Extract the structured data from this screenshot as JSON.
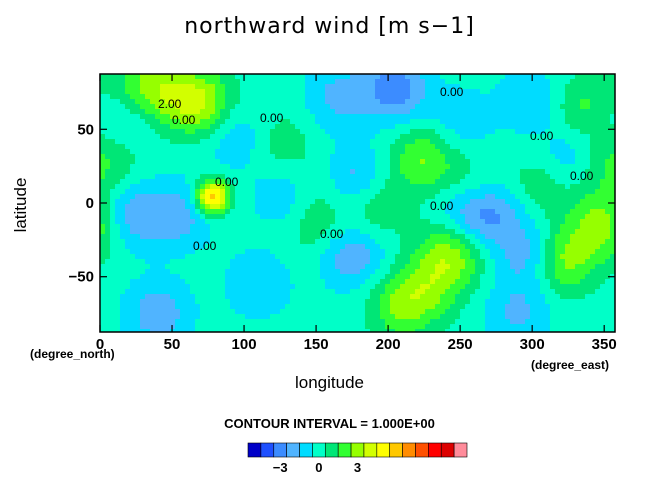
{
  "chart_data": {
    "type": "heatmap",
    "title": "northward wind [m s−1]",
    "xlabel": "longitude",
    "ylabel": "latitude",
    "x_unit_label": "(degree_east)",
    "y_unit_label": "(degree_north)",
    "xlim": [
      0,
      357.5
    ],
    "ylim": [
      -87.5,
      87.5
    ],
    "x_ticks": [
      0,
      50,
      100,
      150,
      200,
      250,
      300,
      350
    ],
    "y_ticks": [
      -50,
      0,
      50
    ],
    "y_tick_labels": [
      "−50",
      "0",
      "50"
    ],
    "contour_interval_text": "CONTOUR INTERVAL = 1.000E+00",
    "contour_labels": [
      "2.00",
      "0.00",
      "0.00",
      "0.00",
      "0.00",
      "0.00",
      "0.00",
      "0.00",
      "0.00",
      "0.00"
    ],
    "colorbar": {
      "tick_labels": [
        "−3",
        "0",
        "3"
      ],
      "tick_values": [
        -3,
        0,
        3
      ],
      "colors": [
        "#0000c8",
        "#1e50ff",
        "#3c8cff",
        "#50b4ff",
        "#00dcff",
        "#00ffc8",
        "#00e676",
        "#32ff32",
        "#96ff00",
        "#d2ff00",
        "#ffff00",
        "#ffc800",
        "#ff8c00",
        "#ff5000",
        "#ff0000",
        "#dc0000",
        "#ff8c9b"
      ],
      "levels_start": -5.5,
      "levels_step": 1
    },
    "features": [
      {
        "lon": 78,
        "lat": 4,
        "value": 6.5
      },
      {
        "lon": 70,
        "lat": 68,
        "value": 3.4
      },
      {
        "lon": 45,
        "lat": 75,
        "value": 2.2
      },
      {
        "lon": 25,
        "lat": 82,
        "value": 1.6
      },
      {
        "lon": 205,
        "lat": 78,
        "value": -3.2
      },
      {
        "lon": 165,
        "lat": 72,
        "value": -1.8
      },
      {
        "lon": 300,
        "lat": 70,
        "value": -1.5
      },
      {
        "lon": 22,
        "lat": -8,
        "value": -2.2
      },
      {
        "lon": 55,
        "lat": -8,
        "value": -2.0
      },
      {
        "lon": 8,
        "lat": 30,
        "value": 1.3
      },
      {
        "lon": 130,
        "lat": 5,
        "value": -1.6
      },
      {
        "lon": 155,
        "lat": 12,
        "value": 1.2
      },
      {
        "lon": 175,
        "lat": 15,
        "value": -2.6
      },
      {
        "lon": 175,
        "lat": -35,
        "value": -2.4
      },
      {
        "lon": 190,
        "lat": -2,
        "value": 1.8
      },
      {
        "lon": 225,
        "lat": 30,
        "value": 2.6
      },
      {
        "lon": 245,
        "lat": -32,
        "value": 3.2
      },
      {
        "lon": 255,
        "lat": -10,
        "value": -2.5
      },
      {
        "lon": 275,
        "lat": -5,
        "value": -2.1
      },
      {
        "lon": 260,
        "lat": 10,
        "value": 1.3
      },
      {
        "lon": 300,
        "lat": -35,
        "value": -2.6
      },
      {
        "lon": 320,
        "lat": -38,
        "value": 3.4
      },
      {
        "lon": 345,
        "lat": 25,
        "value": 1.6
      },
      {
        "lon": 350,
        "lat": -15,
        "value": 3.0
      },
      {
        "lon": 305,
        "lat": 10,
        "value": 1.4
      },
      {
        "lon": 335,
        "lat": 65,
        "value": 1.8
      },
      {
        "lon": 40,
        "lat": -75,
        "value": -2.2
      },
      {
        "lon": 110,
        "lat": -55,
        "value": -1.5
      },
      {
        "lon": 210,
        "lat": -70,
        "value": 2.6
      },
      {
        "lon": 290,
        "lat": -75,
        "value": -1.7
      },
      {
        "lon": 150,
        "lat": -15,
        "value": 1.4
      },
      {
        "lon": 95,
        "lat": 45,
        "value": -1.5
      },
      {
        "lon": 125,
        "lat": 40,
        "value": 1.2
      },
      {
        "lon": 250,
        "lat": 55,
        "value": -1.3
      },
      {
        "lon": 330,
        "lat": 30,
        "value": -1.9
      },
      {
        "lon": 230,
        "lat": -55,
        "value": 2.0
      },
      {
        "lon": 15,
        "lat": 55,
        "value": -1.2
      }
    ]
  }
}
